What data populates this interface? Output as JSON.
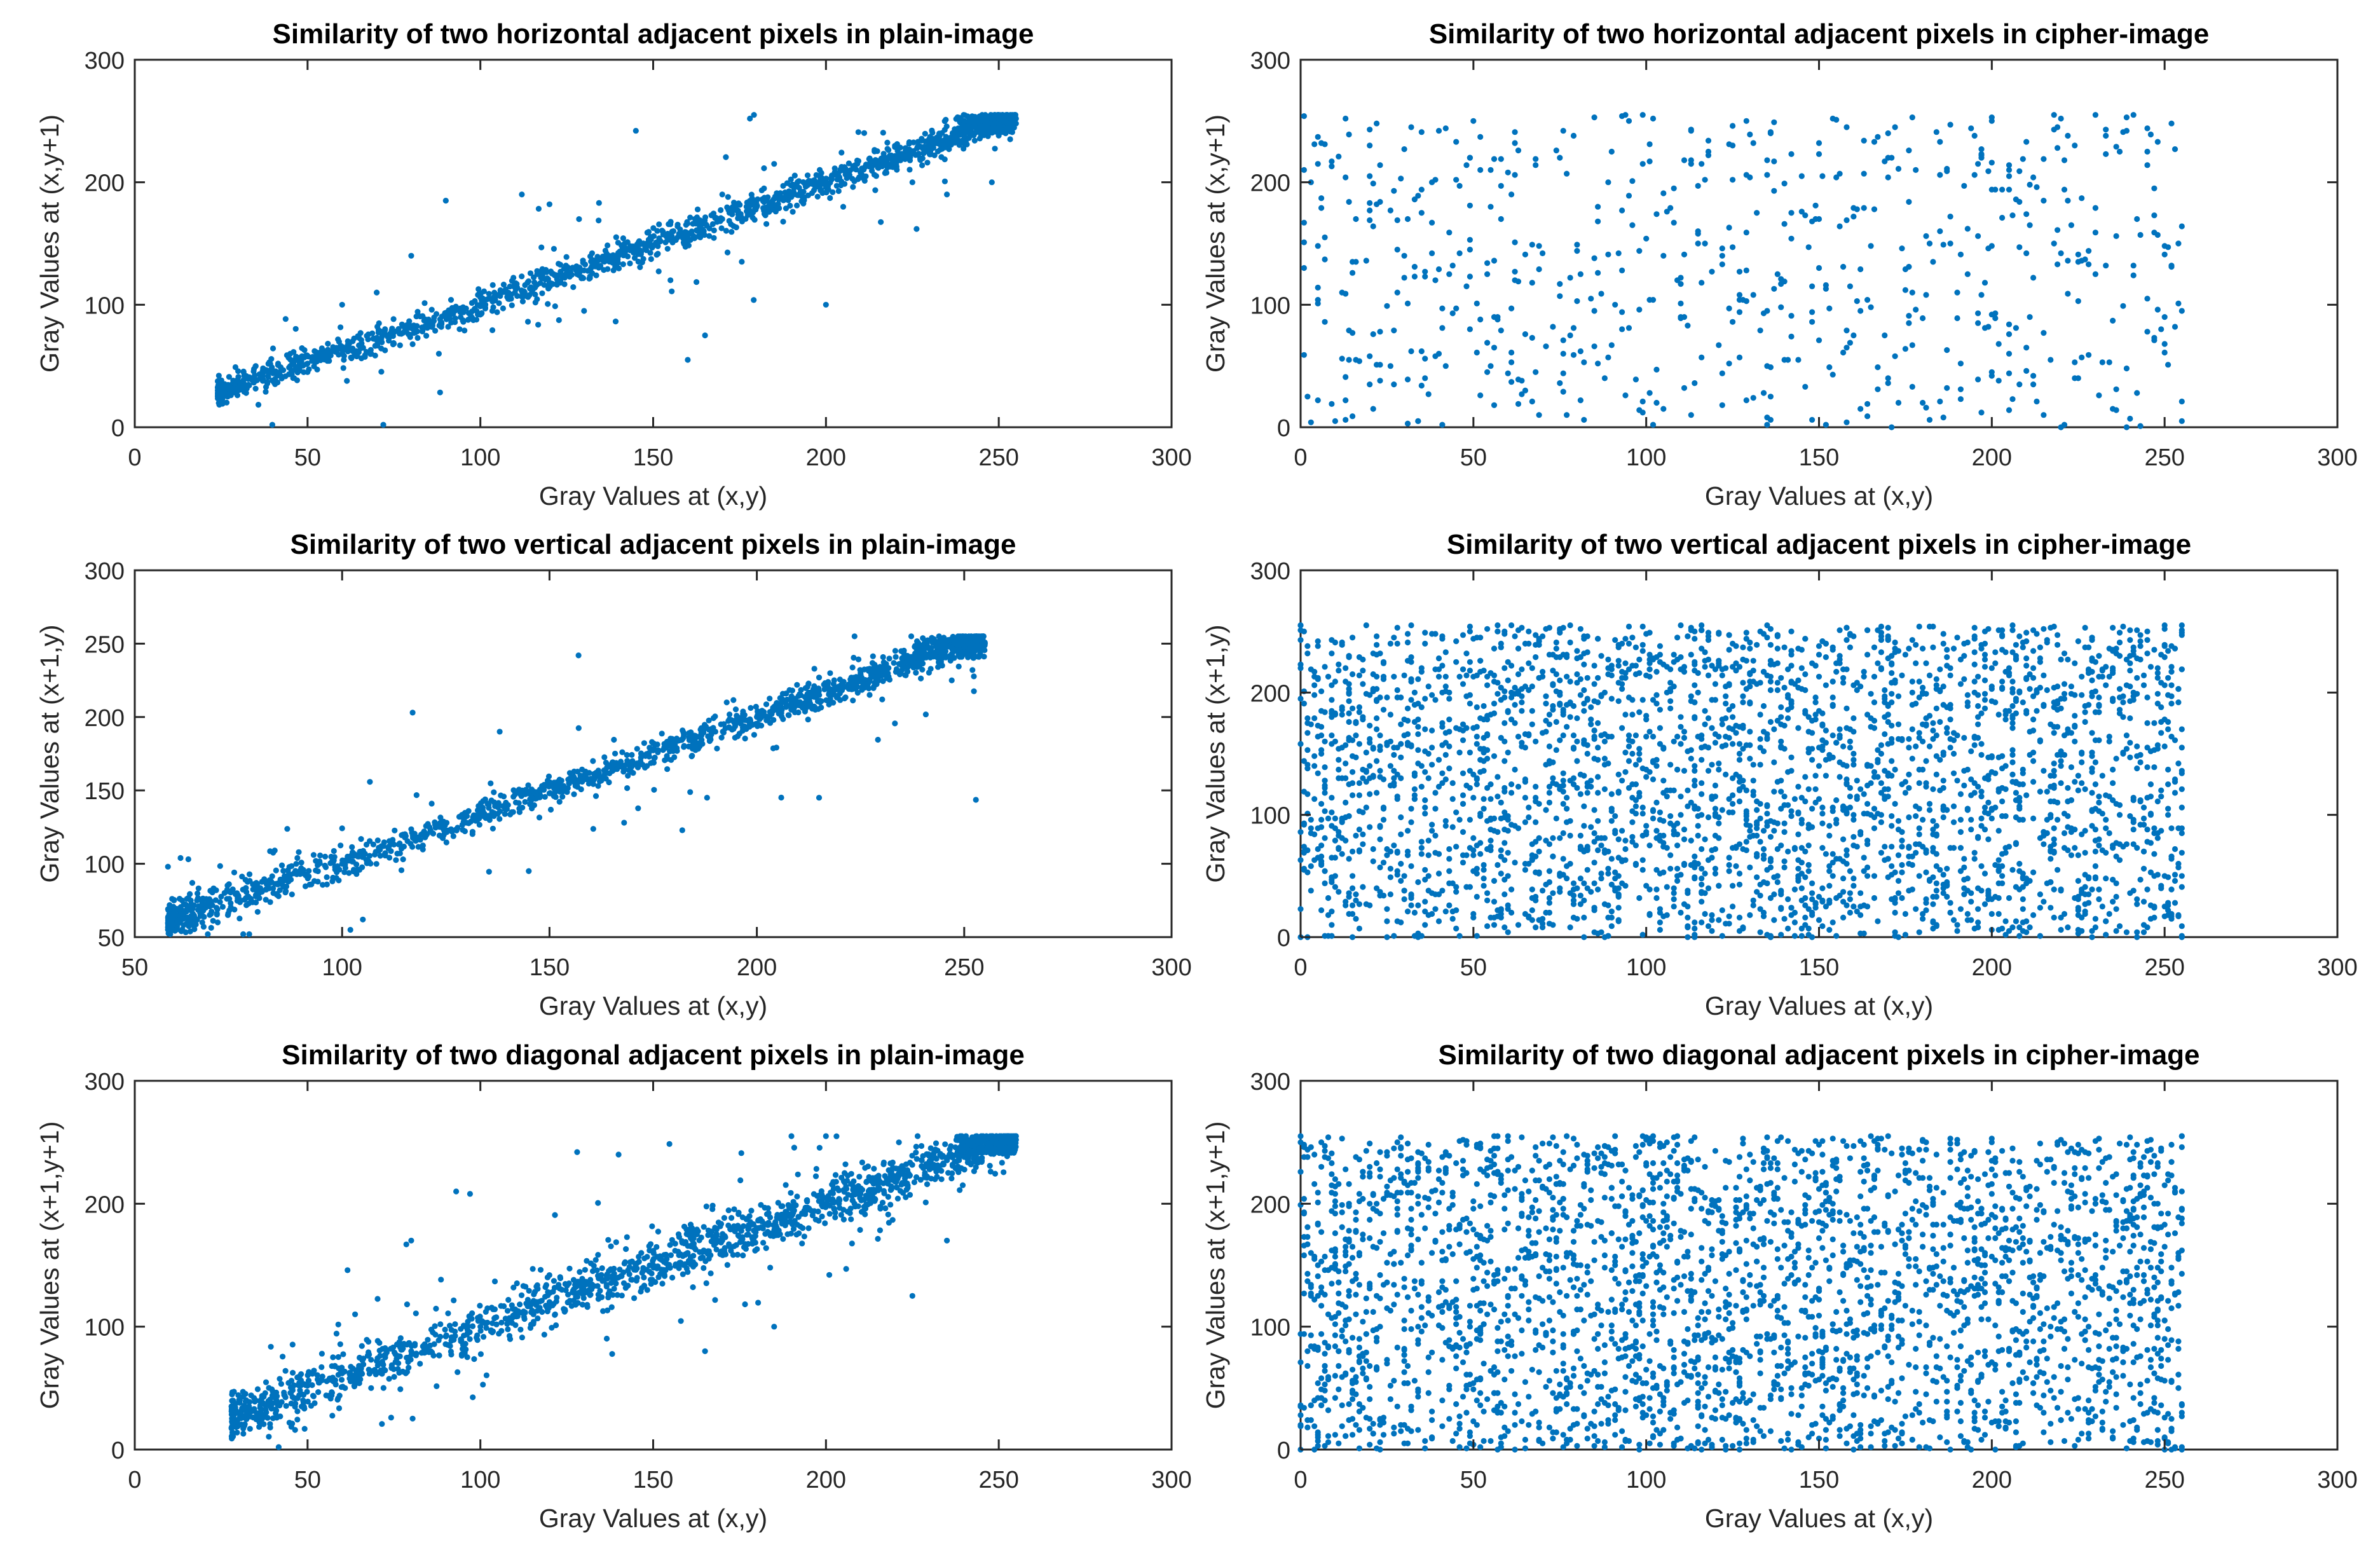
{
  "figure": {
    "marker_color": "#0072BD",
    "axes_color": "#262626"
  },
  "chart_data": [
    {
      "type": "scatter",
      "title": "Similarity of two horizontal adjacent pixels in plain-image",
      "xlabel": "Gray Values at (x,y)",
      "ylabel": "Gray Values at (x,y+1)",
      "xlim": [
        0,
        300
      ],
      "ylim": [
        0,
        300
      ],
      "xticks": [
        0,
        50,
        100,
        150,
        200,
        250,
        300
      ],
      "yticks": [
        0,
        100,
        200,
        300
      ],
      "grid": false,
      "points": [
        [
          24,
          30
        ],
        [
          30,
          32
        ],
        [
          35,
          38
        ],
        [
          40,
          44
        ],
        [
          45,
          50
        ],
        [
          50,
          52
        ],
        [
          55,
          58
        ],
        [
          60,
          63
        ],
        [
          65,
          67
        ],
        [
          70,
          73
        ],
        [
          75,
          78
        ],
        [
          80,
          82
        ],
        [
          85,
          88
        ],
        [
          90,
          92
        ],
        [
          95,
          98
        ],
        [
          100,
          100
        ],
        [
          110,
          110
        ],
        [
          120,
          118
        ],
        [
          130,
          128
        ],
        [
          140,
          140
        ],
        [
          150,
          148
        ],
        [
          160,
          158
        ],
        [
          170,
          170
        ],
        [
          180,
          180
        ],
        [
          190,
          188
        ],
        [
          200,
          198
        ],
        [
          210,
          208
        ],
        [
          220,
          218
        ],
        [
          230,
          228
        ],
        [
          240,
          238
        ],
        [
          245,
          245
        ],
        [
          250,
          248
        ],
        [
          255,
          252
        ],
        [
          80,
          140
        ],
        [
          90,
          185
        ],
        [
          112,
          190
        ],
        [
          120,
          182
        ],
        [
          145,
          242
        ],
        [
          160,
          55
        ],
        [
          165,
          75
        ],
        [
          178,
          252
        ],
        [
          200,
          100
        ],
        [
          205,
          180
        ],
        [
          248,
          200
        ],
        [
          255,
          248
        ],
        [
          225,
          200
        ],
        [
          185,
          215
        ],
        [
          235,
          190
        ],
        [
          60,
          100
        ],
        [
          70,
          110
        ],
        [
          88,
          60
        ],
        [
          155,
          120
        ],
        [
          170,
          190
        ],
        [
          130,
          95
        ],
        [
          215,
          212
        ],
        [
          240,
          250
        ],
        [
          248,
          252
        ],
        [
          252,
          240
        ],
        [
          250,
          252
        ],
        [
          45,
          60
        ],
        [
          50,
          45
        ],
        [
          35,
          50
        ]
      ],
      "series_note": "dense band along y = x from ~25 to 255"
    },
    {
      "type": "scatter",
      "title": "Similarity of two horizontal adjacent pixels in cipher-image",
      "xlabel": "Gray Values at (x,y)",
      "ylabel": "Gray Values at (x,y+1)",
      "xlim": [
        0,
        300
      ],
      "ylim": [
        0,
        300
      ],
      "xticks": [
        0,
        50,
        100,
        150,
        200,
        250,
        300
      ],
      "yticks": [
        0,
        100,
        200,
        300
      ],
      "grid": false,
      "points": [
        [
          2,
          25
        ],
        [
          5,
          215
        ],
        [
          10,
          5
        ],
        [
          20,
          230
        ],
        [
          30,
          140
        ],
        [
          40,
          60
        ],
        [
          50,
          250
        ],
        [
          55,
          180
        ],
        [
          65,
          30
        ],
        [
          75,
          220
        ],
        [
          85,
          95
        ],
        [
          95,
          250
        ],
        [
          105,
          15
        ],
        [
          115,
          160
        ],
        [
          125,
          230
        ],
        [
          135,
          50
        ],
        [
          145,
          205
        ],
        [
          150,
          130
        ],
        [
          160,
          75
        ],
        [
          170,
          240
        ],
        [
          180,
          20
        ],
        [
          190,
          110
        ],
        [
          200,
          250
        ],
        [
          205,
          60
        ],
        [
          215,
          185
        ],
        [
          225,
          135
        ],
        [
          235,
          15
        ],
        [
          245,
          225
        ],
        [
          250,
          90
        ],
        [
          255,
          5
        ],
        [
          12,
          110
        ],
        [
          38,
          200
        ],
        [
          62,
          120
        ],
        [
          88,
          40
        ],
        [
          110,
          90
        ],
        [
          132,
          175
        ],
        [
          158,
          245
        ],
        [
          182,
          150
        ],
        [
          212,
          35
        ],
        [
          242,
          170
        ]
      ],
      "series_note": "sparse uniform scatter over [0,255]x[0,255]"
    },
    {
      "type": "scatter",
      "title": "Similarity of two vertical adjacent pixels in plain-image",
      "xlabel": "Gray Values at (x,y)",
      "ylabel": "Gray Values at (x+1,y)",
      "xlim": [
        50,
        300
      ],
      "ylim": [
        50,
        300
      ],
      "xticks": [
        50,
        100,
        150,
        200,
        250,
        300
      ],
      "yticks": [
        50,
        100,
        150,
        200,
        250,
        300
      ],
      "grid": false,
      "points": [
        [
          58,
          98
        ],
        [
          60,
          65
        ],
        [
          65,
          75
        ],
        [
          70,
          60
        ],
        [
          75,
          78
        ],
        [
          80,
          80
        ],
        [
          85,
          82
        ],
        [
          90,
          95
        ],
        [
          100,
          100
        ],
        [
          110,
          112
        ],
        [
          120,
          118
        ],
        [
          130,
          128
        ],
        [
          140,
          140
        ],
        [
          150,
          148
        ],
        [
          160,
          158
        ],
        [
          170,
          170
        ],
        [
          180,
          178
        ],
        [
          190,
          190
        ],
        [
          200,
          200
        ],
        [
          210,
          208
        ],
        [
          220,
          218
        ],
        [
          230,
          228
        ],
        [
          240,
          240
        ],
        [
          250,
          248
        ],
        [
          255,
          250
        ],
        [
          117,
          203
        ],
        [
          157,
          242
        ],
        [
          102,
          55
        ],
        [
          105,
          62
        ],
        [
          145,
          95
        ],
        [
          168,
          128
        ],
        [
          215,
          145
        ],
        [
          138,
          190
        ],
        [
          188,
          145
        ],
        [
          235,
          240
        ],
        [
          248,
          252
        ],
        [
          252,
          232
        ],
        [
          247,
          225
        ]
      ],
      "series_note": "dense band along y = x from ~58 to 255"
    },
    {
      "type": "scatter",
      "title": "Similarity of two vertical adjacent pixels in cipher-image",
      "xlabel": "Gray Values at (x,y)",
      "ylabel": "Gray Values at (x+1,y)",
      "xlim": [
        0,
        300
      ],
      "ylim": [
        0,
        300
      ],
      "xticks": [
        0,
        50,
        100,
        150,
        200,
        250,
        300
      ],
      "yticks": [
        0,
        100,
        200,
        300
      ],
      "grid": false,
      "points": [
        [
          0,
          0
        ],
        [
          0,
          255
        ],
        [
          255,
          0
        ],
        [
          255,
          255
        ],
        [
          128,
          128
        ],
        [
          64,
          192
        ],
        [
          192,
          64
        ],
        [
          32,
          32
        ],
        [
          224,
          224
        ],
        [
          96,
          160
        ],
        [
          160,
          96
        ]
      ],
      "series_note": "dense uniform scatter over [0,255]x[0,255]"
    },
    {
      "type": "scatter",
      "title": "Similarity of two diagonal adjacent pixels in plain-image",
      "xlabel": "Gray Values at (x,y)",
      "ylabel": "Gray Values at (x+1,y+1)",
      "xlim": [
        0,
        300
      ],
      "ylim": [
        0,
        300
      ],
      "xticks": [
        0,
        50,
        100,
        150,
        200,
        250,
        300
      ],
      "yticks": [
        0,
        100,
        200,
        300
      ],
      "grid": false,
      "points": [
        [
          28,
          35
        ],
        [
          35,
          40
        ],
        [
          40,
          45
        ],
        [
          50,
          52
        ],
        [
          60,
          62
        ],
        [
          70,
          72
        ],
        [
          80,
          80
        ],
        [
          90,
          92
        ],
        [
          100,
          100
        ],
        [
          110,
          110
        ],
        [
          120,
          120
        ],
        [
          130,
          130
        ],
        [
          140,
          140
        ],
        [
          150,
          150
        ],
        [
          160,
          160
        ],
        [
          170,
          170
        ],
        [
          180,
          180
        ],
        [
          190,
          190
        ],
        [
          200,
          200
        ],
        [
          210,
          208
        ],
        [
          220,
          218
        ],
        [
          230,
          228
        ],
        [
          240,
          238
        ],
        [
          250,
          248
        ],
        [
          255,
          252
        ],
        [
          80,
          170
        ],
        [
          93,
          210
        ],
        [
          97,
          208
        ],
        [
          128,
          242
        ],
        [
          140,
          240
        ],
        [
          165,
          80
        ],
        [
          185,
          100
        ],
        [
          190,
          255
        ],
        [
          200,
          255
        ],
        [
          225,
          125
        ],
        [
          235,
          170
        ],
        [
          245,
          245
        ],
        [
          252,
          252
        ]
      ],
      "series_note": "band along y = x with wider spread, ~28 to 255"
    },
    {
      "type": "scatter",
      "title": "Similarity of two diagonal adjacent pixels in cipher-image",
      "xlabel": "Gray Values at (x,y)",
      "ylabel": "Gray Values at (x+1,y+1)",
      "xlim": [
        0,
        300
      ],
      "ylim": [
        0,
        300
      ],
      "xticks": [
        0,
        50,
        100,
        150,
        200,
        250,
        300
      ],
      "yticks": [
        0,
        100,
        200,
        300
      ],
      "grid": false,
      "points": [
        [
          0,
          0
        ],
        [
          0,
          255
        ],
        [
          255,
          0
        ],
        [
          255,
          255
        ],
        [
          128,
          128
        ],
        [
          64,
          192
        ],
        [
          192,
          64
        ],
        [
          32,
          32
        ],
        [
          224,
          224
        ],
        [
          96,
          160
        ],
        [
          160,
          96
        ]
      ],
      "series_note": "dense uniform scatter over [0,255]x[0,255]"
    }
  ]
}
